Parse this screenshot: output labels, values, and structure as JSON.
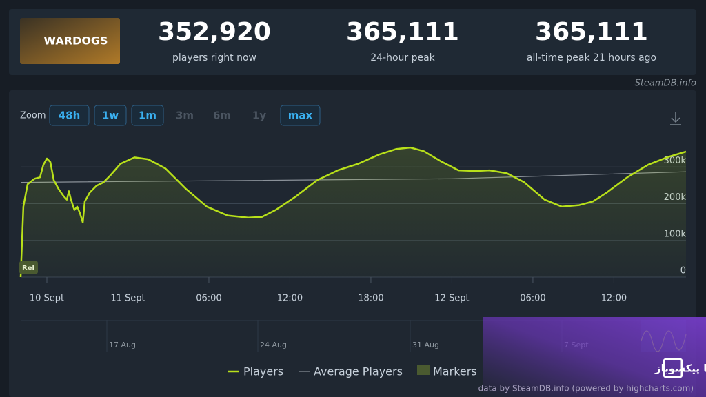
{
  "game_name": "WARDOGS",
  "stats": [
    {
      "value": "352,920",
      "label": "players right now"
    },
    {
      "value": "365,111",
      "label": "24-hour peak"
    },
    {
      "value": "365,111",
      "label": "all-time peak 21 hours ago"
    }
  ],
  "site": "SteamDB.info",
  "zoom": {
    "label": "Zoom",
    "buttons": [
      "48h",
      "1w",
      "1m",
      "3m",
      "6m",
      "1y",
      "max"
    ]
  },
  "navigator_labels": [
    "17 Aug",
    "24 Aug",
    "31 Aug",
    "7 Sept"
  ],
  "credit": "data by SteamDB.info (powered by highcharts.com)",
  "watermark": "پیکسل به پیکسل؛ با پیکسوباز",
  "chart_data": {
    "type": "line",
    "series": [
      {
        "name": "Players",
        "color": "#b8e01a",
        "x": [
          -1.94,
          -1.74,
          -1.43,
          -0.92,
          -0.51,
          -0.26,
          0,
          0.26,
          0.51,
          0.87,
          1.23,
          1.48,
          1.63,
          1.79,
          2.04,
          2.25,
          2.45,
          2.66,
          2.81,
          3.17,
          3.68,
          4.19,
          4.7,
          5.46,
          6.49,
          7.51,
          8.78,
          10.31,
          11.85,
          13.38,
          14.91,
          15.93,
          16.95,
          18.49,
          20.02,
          21.55,
          23.08,
          24.61,
          25.89,
          26.91,
          27.93,
          29.21,
          30.49,
          31.76,
          32.78,
          34.06,
          35.34,
          36.87,
          38.15,
          39.43,
          40.44,
          41.46,
          42.99,
          44.53,
          46.06,
          47.34
        ],
        "values": [
          0,
          192000,
          253000,
          268000,
          272000,
          306000,
          323000,
          313000,
          264000,
          240000,
          221000,
          211000,
          234000,
          211000,
          183000,
          192000,
          174000,
          149000,
          206000,
          230000,
          249000,
          258000,
          277000,
          309000,
          326000,
          321000,
          296000,
          240000,
          192000,
          168000,
          162000,
          164000,
          183000,
          221000,
          264000,
          291000,
          309000,
          334000,
          349000,
          353000,
          343000,
          315000,
          291000,
          289000,
          291000,
          283000,
          259000,
          211000,
          192000,
          196000,
          206000,
          230000,
          272000,
          306000,
          328000,
          342000
        ]
      },
      {
        "name": "Average Players",
        "color": "#8a9199",
        "x": [
          -1.94,
          29.97,
          47.34
        ],
        "values": [
          258000,
          268000,
          287000
        ]
      }
    ],
    "markers_label": "Markers",
    "marker_note": "Rel",
    "xlim": [
      -1.94,
      47.34
    ],
    "ylim": [
      0,
      370000
    ],
    "xticks": [
      {
        "value": 0,
        "label": "10 Sept"
      },
      {
        "value": 6,
        "label": "11 Sept"
      },
      {
        "value": 12,
        "label": "06:00"
      },
      {
        "value": 18,
        "label": "12:00"
      },
      {
        "value": 24,
        "label": "18:00"
      },
      {
        "value": 30,
        "label": "12 Sept"
      },
      {
        "value": 36,
        "label": "06:00"
      },
      {
        "value": 42,
        "label": "12:00"
      }
    ],
    "yticks": [
      0,
      {
        "value": 100000,
        "label": "100k"
      },
      {
        "value": 200000,
        "label": "200k"
      },
      {
        "value": 300000,
        "label": "300k"
      }
    ],
    "grid": true
  }
}
